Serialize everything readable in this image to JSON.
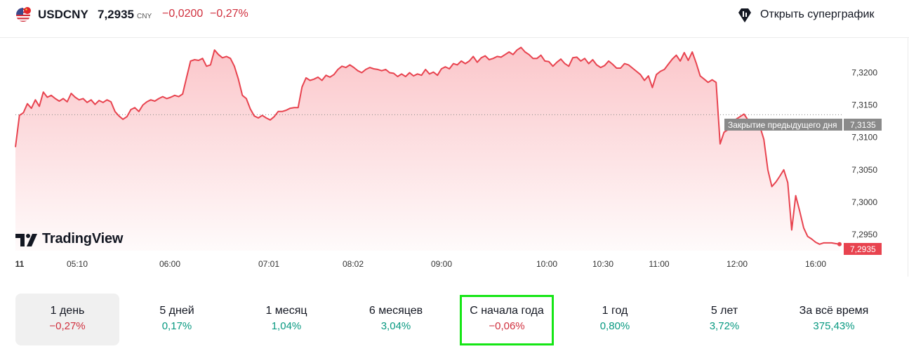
{
  "header": {
    "symbol": "USDCNY",
    "price": "7,2935",
    "currency": "CNY",
    "change": "−0,0200",
    "change_percent": "−0,27%",
    "supergraph_label": "Открыть суперграфик"
  },
  "branding": {
    "logo_text": "TradingView"
  },
  "chart_data": {
    "type": "area",
    "title": "",
    "xlabel": "",
    "ylabel": "",
    "x_ticks": [
      "11",
      "05:10",
      "06:00",
      "07:01",
      "08:02",
      "09:00",
      "10:00",
      "10:30",
      "11:00",
      "12:00",
      "16:00"
    ],
    "y_ticks": [
      "7,3200",
      "7,3150",
      "7,3100",
      "7,3050",
      "7,3000",
      "7,2950"
    ],
    "ylim": [
      7.2925,
      7.3245
    ],
    "previous_close": {
      "label": "Закрытие предыдущего дня",
      "value": 7.3135,
      "value_label": "7,3135"
    },
    "last_value": {
      "value": 7.2935,
      "label": "7,2935"
    },
    "series": [
      {
        "color": "#e8434f",
        "values": [
          7.3085,
          7.3134,
          7.3138,
          7.3152,
          7.3145,
          7.3158,
          7.3148,
          7.317,
          7.3162,
          7.3165,
          7.316,
          7.3156,
          7.316,
          7.3155,
          7.3168,
          7.3162,
          7.3158,
          7.316,
          7.3154,
          7.3158,
          7.3151,
          7.3157,
          7.3154,
          7.3158,
          7.3155,
          7.314,
          7.3133,
          7.3128,
          7.3132,
          7.3143,
          7.3146,
          7.314,
          7.315,
          7.3155,
          7.3158,
          7.3156,
          7.316,
          7.3163,
          7.316,
          7.3162,
          7.3165,
          7.3163,
          7.3167,
          7.3193,
          7.3218,
          7.322,
          7.3219,
          7.3222,
          7.321,
          7.3212,
          7.3235,
          7.3228,
          7.3223,
          7.3225,
          7.3222,
          7.321,
          7.319,
          7.3165,
          7.316,
          7.3144,
          7.3133,
          7.313,
          7.3134,
          7.313,
          7.3127,
          7.3132,
          7.314,
          7.314,
          7.3142,
          7.3145,
          7.3146,
          7.3146,
          7.3178,
          7.3192,
          7.3188,
          7.319,
          7.3193,
          7.3188,
          7.3196,
          7.3193,
          7.3197,
          7.3205,
          7.321,
          7.3208,
          7.3212,
          7.3208,
          7.3203,
          7.32,
          7.3205,
          7.3208,
          7.3206,
          7.3205,
          7.3203,
          7.3205,
          7.32,
          7.3199,
          7.3194,
          7.3198,
          7.3194,
          7.32,
          7.3195,
          7.3198,
          7.3196,
          7.3205,
          7.3198,
          7.3201,
          7.3196,
          7.3206,
          7.3209,
          7.3206,
          7.3214,
          7.3212,
          7.3218,
          7.3214,
          7.3218,
          7.3225,
          7.3216,
          7.3223,
          7.3226,
          7.322,
          7.3222,
          7.3225,
          7.3224,
          7.3228,
          7.3232,
          7.3228,
          7.3235,
          7.3239,
          7.3232,
          7.3228,
          7.3222,
          7.3222,
          7.3227,
          7.3218,
          7.3217,
          7.321,
          7.3216,
          7.3221,
          7.3214,
          7.321,
          7.3223,
          7.3224,
          7.3218,
          7.3222,
          7.3214,
          7.322,
          7.3212,
          7.3208,
          7.3211,
          7.3218,
          7.3213,
          7.3207,
          7.3207,
          7.3214,
          7.3212,
          7.3207,
          7.3202,
          7.3197,
          7.3188,
          7.3195,
          7.3177,
          7.3197,
          7.3202,
          7.3205,
          7.3213,
          7.3221,
          7.3227,
          7.3218,
          7.3231,
          7.3219,
          7.3232,
          7.3215,
          7.3195,
          7.319,
          7.3185,
          7.3189,
          7.3185,
          7.309,
          7.3108,
          7.3112,
          7.3119,
          7.3128,
          7.3132,
          7.3136,
          7.3127,
          7.312,
          7.3124,
          7.3117,
          7.3097,
          7.305,
          7.3024,
          7.3031,
          7.304,
          7.305,
          7.303,
          7.2957,
          7.301,
          7.2986,
          7.296,
          7.2947,
          7.2943,
          7.2938,
          7.2935,
          7.2937,
          7.2937,
          7.2937,
          7.2936,
          7.2935
        ]
      }
    ],
    "grid": false,
    "legend": "none"
  },
  "periods": [
    {
      "label": "1 день",
      "value": "−0,27%",
      "trend": "neg",
      "active": true
    },
    {
      "label": "5 дней",
      "value": "0,17%",
      "trend": "pos"
    },
    {
      "label": "1 месяц",
      "value": "1,04%",
      "trend": "pos"
    },
    {
      "label": "6 месяцев",
      "value": "3,04%",
      "trend": "pos"
    },
    {
      "label": "С начала года",
      "value": "−0,06%",
      "trend": "neg",
      "highlighted": true
    },
    {
      "label": "1 год",
      "value": "0,80%",
      "trend": "pos"
    },
    {
      "label": "5 лет",
      "value": "3,72%",
      "trend": "pos"
    },
    {
      "label": "За всё время",
      "value": "375,43%",
      "trend": "pos"
    }
  ],
  "colors": {
    "negative": "#d0303e",
    "positive": "#089981",
    "line": "#e8434f",
    "highlight_box": "#15e615"
  }
}
